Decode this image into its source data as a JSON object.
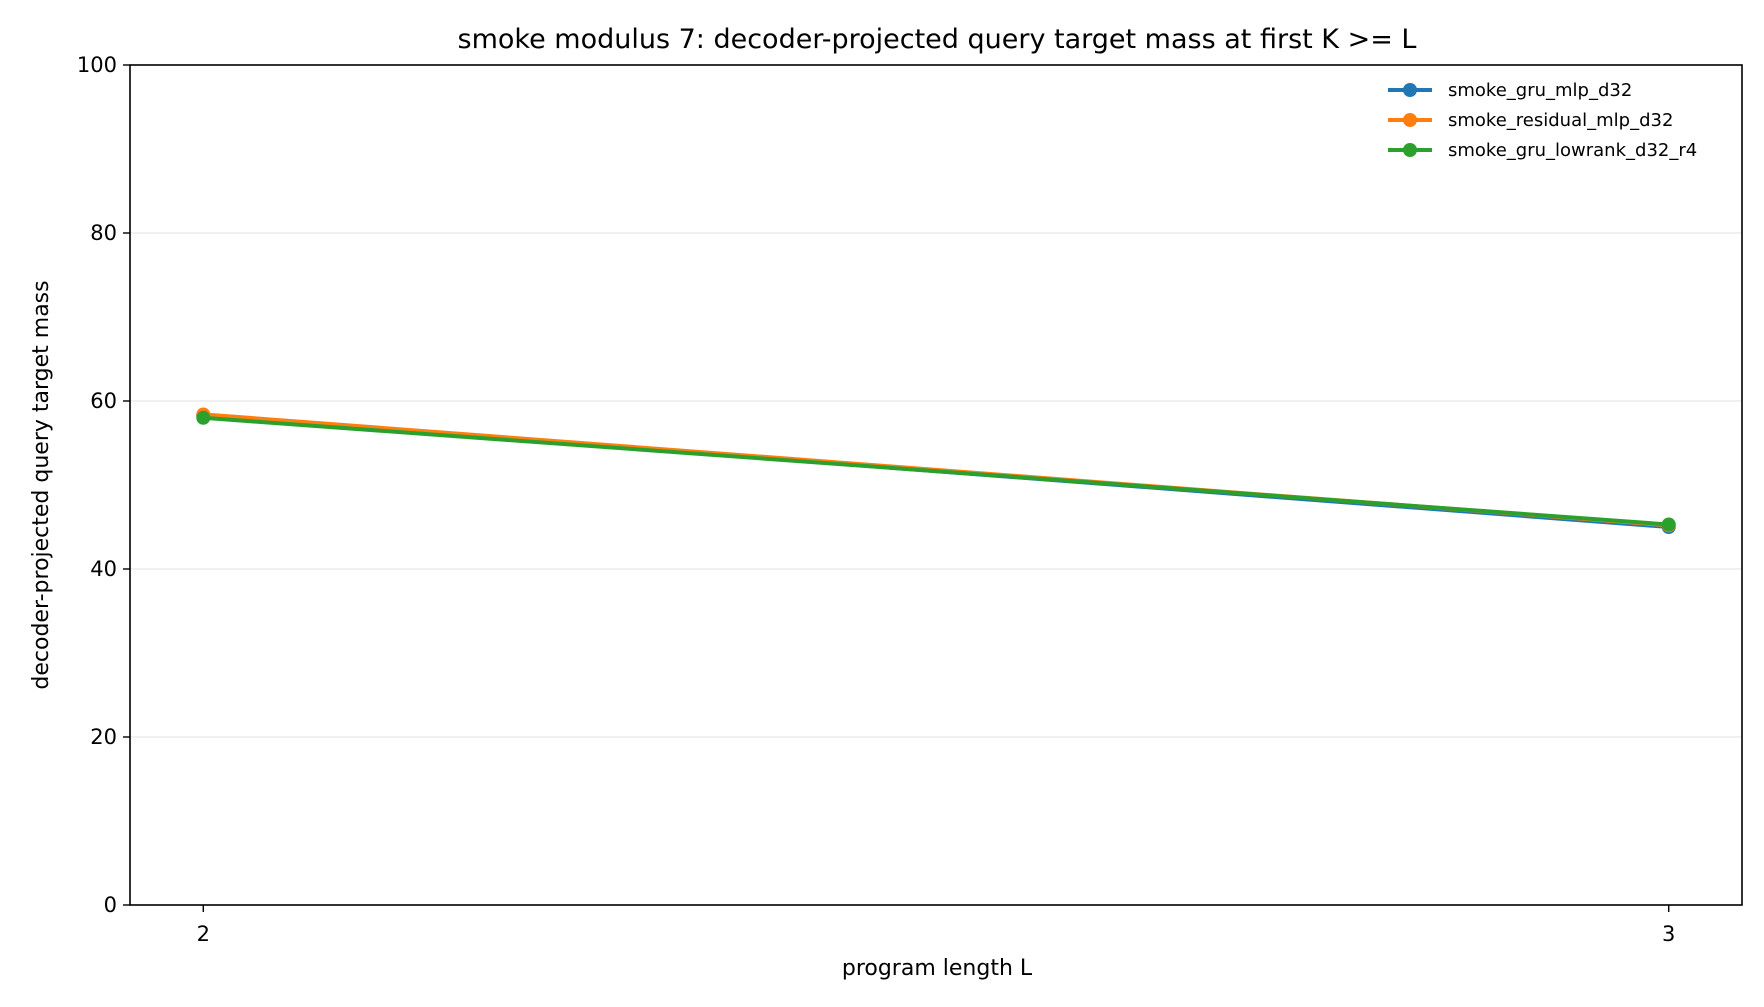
{
  "chart_data": {
    "type": "line",
    "title": "smoke modulus 7: decoder-projected query target mass at first K >= L",
    "xlabel": "program length L",
    "ylabel": "decoder-projected query target mass",
    "x": [
      2,
      3
    ],
    "x_tick_labels": [
      "2",
      "3"
    ],
    "xlim": [
      1.95,
      3.05
    ],
    "ylim": [
      0,
      100
    ],
    "y_ticks": [
      0,
      20,
      40,
      60,
      80,
      100
    ],
    "y_tick_labels": [
      "0",
      "20",
      "40",
      "60",
      "80",
      "100"
    ],
    "grid": "horizontal",
    "legend_position": "top-right",
    "series": [
      {
        "name": "smoke_gru_mlp_d32",
        "color": "#1f77b4",
        "values": [
          58.3,
          45.0
        ]
      },
      {
        "name": "smoke_residual_mlp_d32",
        "color": "#ff7f0e",
        "values": [
          58.4,
          45.2
        ]
      },
      {
        "name": "smoke_gru_lowrank_d32_r4",
        "color": "#2ca02c",
        "values": [
          58.0,
          45.3
        ]
      }
    ]
  }
}
